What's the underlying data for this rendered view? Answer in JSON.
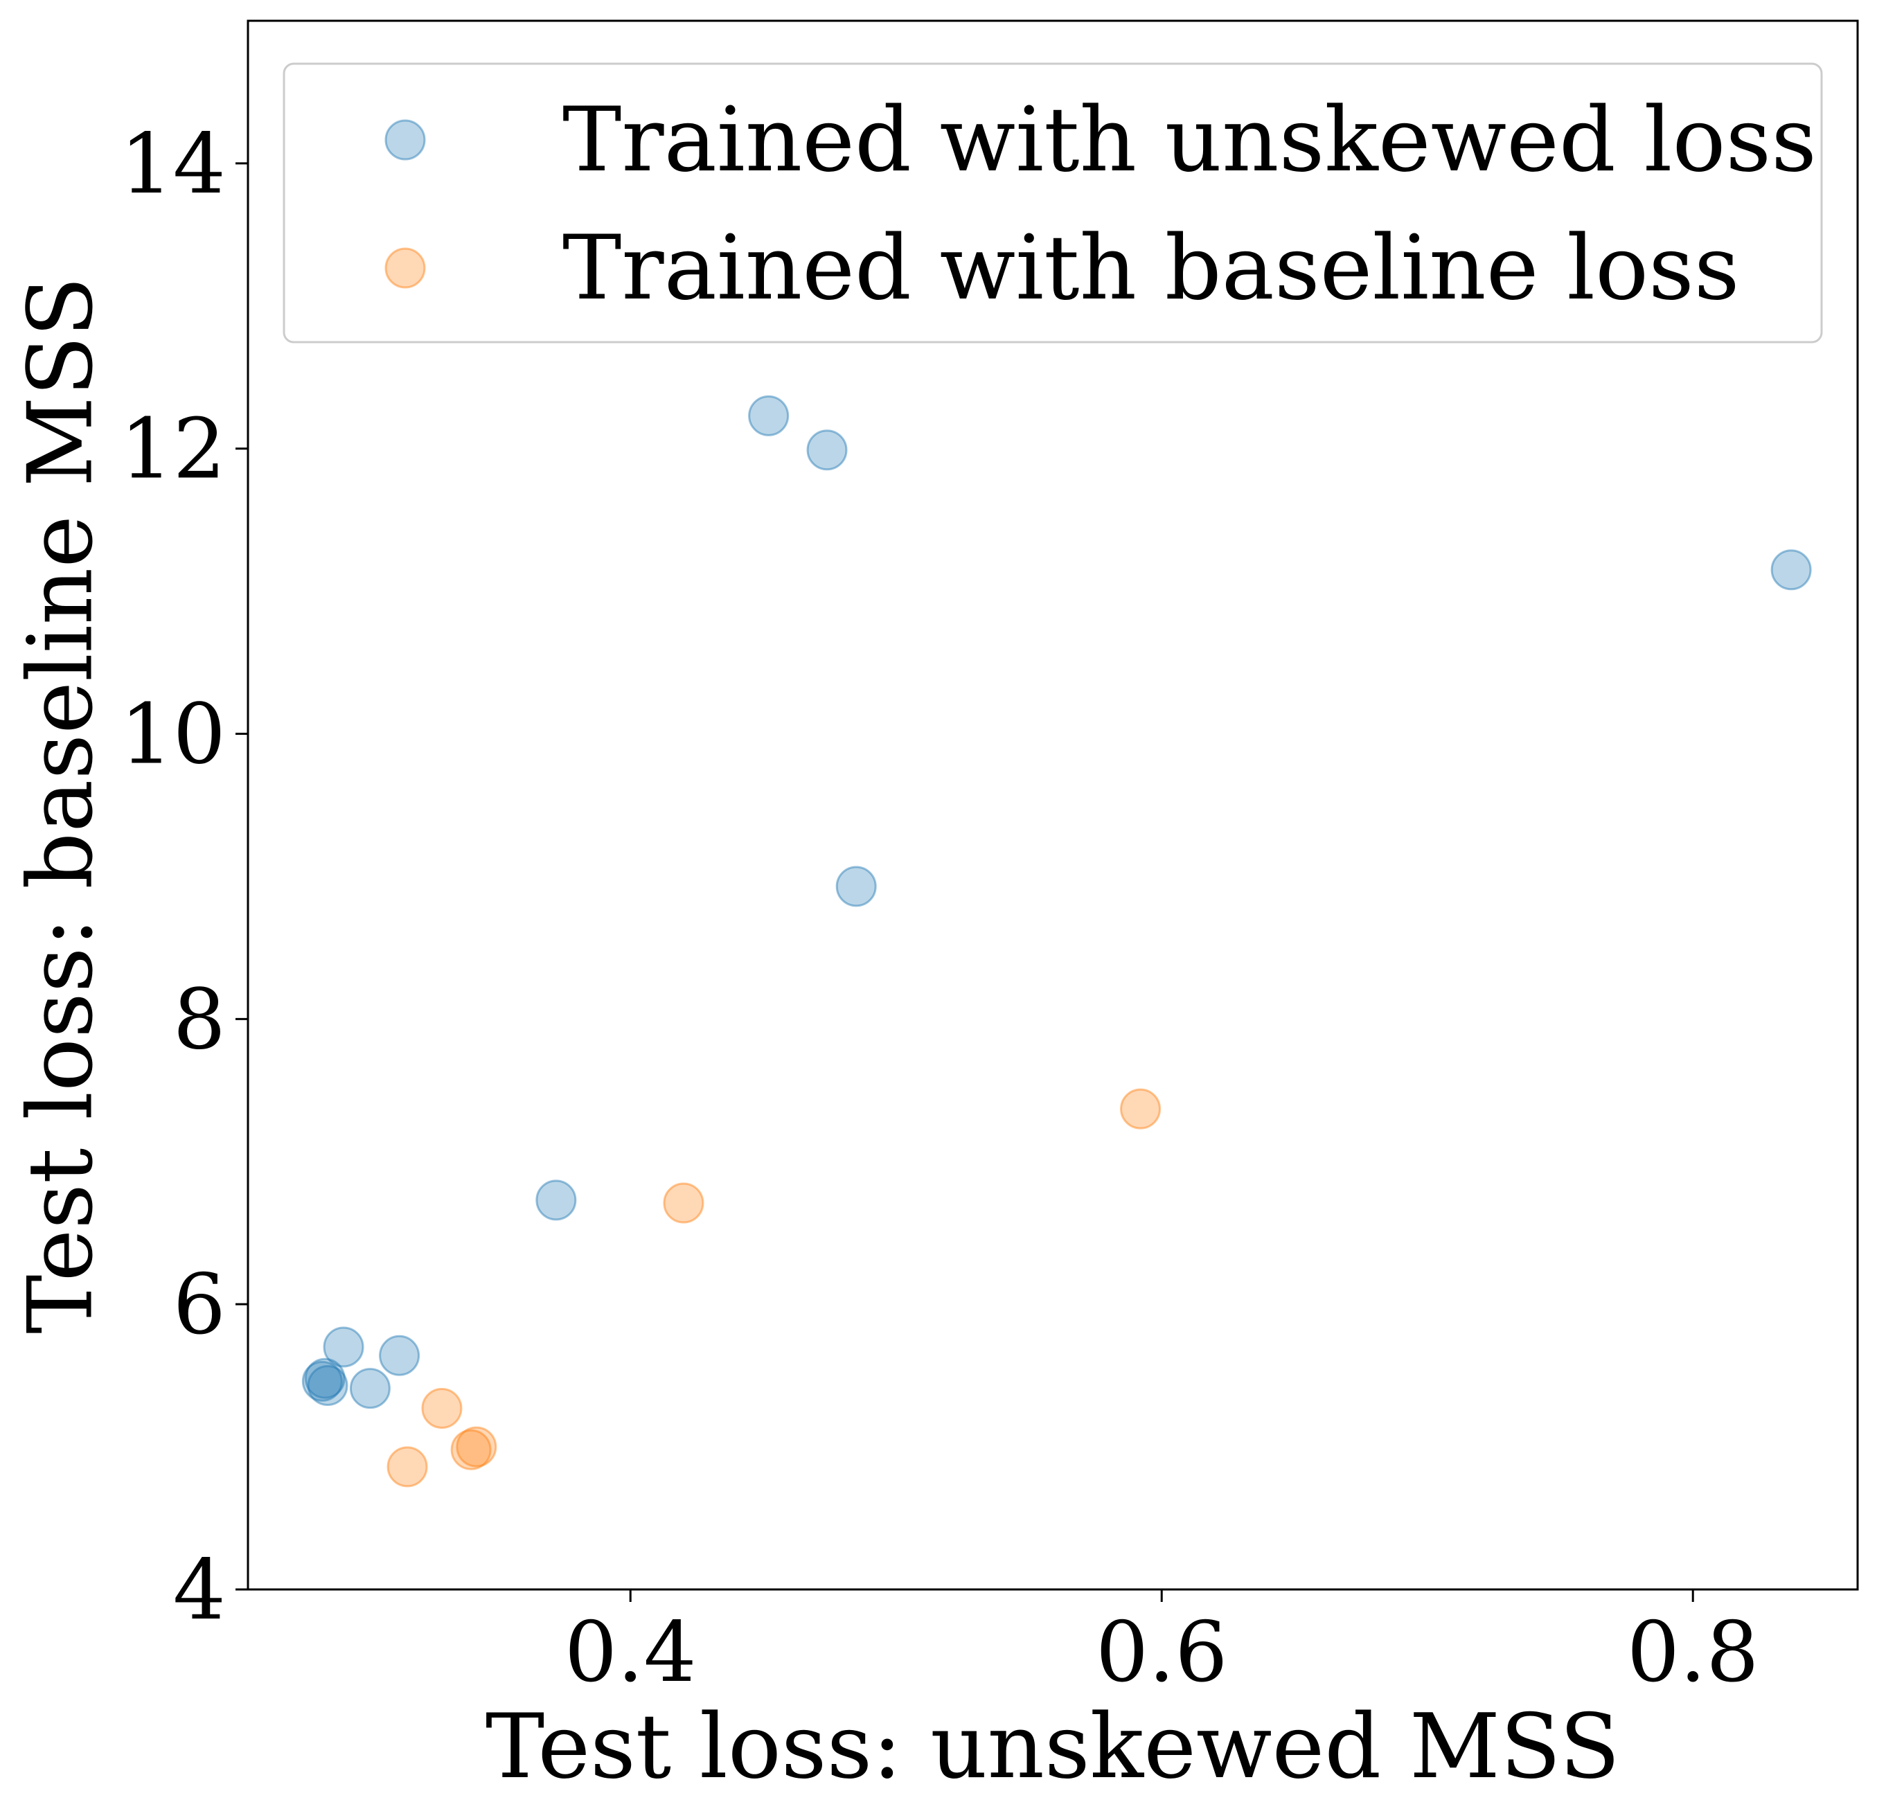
{
  "chart_data": {
    "type": "scatter",
    "title": "",
    "xlabel": "Test loss: unskewed MSS",
    "ylabel": "Test loss: baseline MSS",
    "xlim": [
      0.256,
      0.862
    ],
    "ylim": [
      4,
      15
    ],
    "xticks": [
      0.4,
      0.6,
      0.8
    ],
    "xtick_labels": [
      "0.4",
      "0.6",
      "0.8"
    ],
    "yticks": [
      4,
      6,
      8,
      10,
      12,
      14
    ],
    "ytick_labels": [
      "4",
      "6",
      "8",
      "10",
      "12",
      "14"
    ],
    "grid": false,
    "legend": "top",
    "series": [
      {
        "name": "Trained with unskewed loss",
        "color": "#1f77b4",
        "opacity": 0.3,
        "points": [
          {
            "x": 0.284,
            "y": 5.46
          },
          {
            "x": 0.285,
            "y": 5.48
          },
          {
            "x": 0.286,
            "y": 5.43
          },
          {
            "x": 0.292,
            "y": 5.7
          },
          {
            "x": 0.302,
            "y": 5.41
          },
          {
            "x": 0.313,
            "y": 5.64
          },
          {
            "x": 0.372,
            "y": 6.73
          },
          {
            "x": 0.452,
            "y": 12.23
          },
          {
            "x": 0.474,
            "y": 11.99
          },
          {
            "x": 0.485,
            "y": 8.93
          },
          {
            "x": 0.837,
            "y": 11.15
          }
        ]
      },
      {
        "name": "Trained with baseline loss",
        "color": "#ff7f0e",
        "opacity": 0.3,
        "points": [
          {
            "x": 0.316,
            "y": 4.86
          },
          {
            "x": 0.329,
            "y": 5.27
          },
          {
            "x": 0.34,
            "y": 4.98
          },
          {
            "x": 0.342,
            "y": 5.0
          },
          {
            "x": 0.42,
            "y": 6.71
          },
          {
            "x": 0.592,
            "y": 7.37
          }
        ]
      }
    ]
  }
}
